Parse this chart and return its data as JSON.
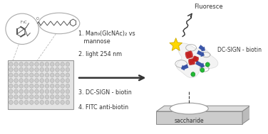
{
  "bg_color": "#ffffff",
  "text_color": "#444444",
  "steps": [
    "1. Man₉(GlcNAc)₂ vs\n   mannose",
    "2. light 254 nm",
    "3. DC-SIGN - biotin",
    "4. FITC anti-biotin"
  ],
  "label_fluoresce": "Fluoresce",
  "label_dcsign": "DC-SIGN - biotin",
  "label_saccharide": "saccharide",
  "star_color": "#FFD700",
  "star_edge": "#ccaa00",
  "protein_red": "#cc2222",
  "protein_blue": "#1a3a9c",
  "protein_gray": "#c8c8c8",
  "green_dot": "#22bb33",
  "dark": "#333333",
  "plate_face": "#e4e4e4",
  "plate_edge": "#999999",
  "well_face": "#cccccc",
  "well_edge": "#aaaaaa",
  "oval_edge": "#aaaaaa",
  "chem_color": "#555555",
  "surf_top": "#dddddd",
  "surf_front": "#cccccc",
  "surf_side": "#bbbbbb",
  "surf_edge": "#888888"
}
